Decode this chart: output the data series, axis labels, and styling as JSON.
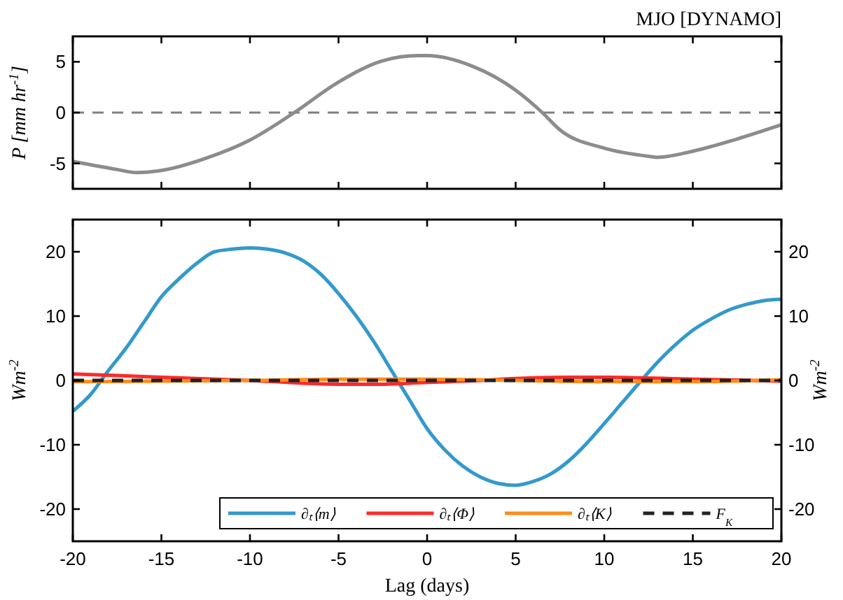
{
  "chart_data": [
    {
      "type": "line",
      "title": "MJO [DYNAMO]",
      "ylabel": "P [mm hr$^{-1}$]",
      "x": [
        -20,
        -17.5,
        -16.4,
        -15,
        -12.5,
        -10,
        -7.5,
        -5,
        -2.5,
        -0.5,
        0,
        2.5,
        5,
        6.5,
        7.5,
        10,
        12.5,
        13,
        15,
        17.5,
        20
      ],
      "series": [
        {
          "color": "#8c8c8c",
          "values": [
            -4.8,
            -5.6,
            -5.9,
            -5.7,
            -4.5,
            -2.7,
            0,
            3,
            5.1,
            5.6,
            5.6,
            4.6,
            2.2,
            0,
            -1.7,
            -3.5,
            -4.3,
            -4.4,
            -3.8,
            -2.6,
            -1.2
          ]
        }
      ],
      "xlim": [
        -20,
        20
      ],
      "xticks": [
        {
          "value": -20,
          "label": null
        },
        {
          "value": -15,
          "label": null
        },
        {
          "value": -10,
          "label": null
        },
        {
          "value": -5,
          "label": null
        },
        {
          "value": 0,
          "label": null
        },
        {
          "value": 5,
          "label": null
        },
        {
          "value": 10,
          "label": null
        },
        {
          "value": 15,
          "label": null
        },
        {
          "value": 20,
          "label": null
        }
      ],
      "ylim": [
        -7.5,
        7.5
      ],
      "yticks": [
        -5,
        0,
        5
      ],
      "tick_labels": "y",
      "legend": false,
      "ref_lines": [
        {
          "axis": "y",
          "value": 0,
          "color": "#808080",
          "line_style": "dashed"
        }
      ]
    },
    {
      "type": "line",
      "xlabel": "Lag (days)",
      "ylabel": "Wm$^{-2}$",
      "y2label": "Wm$^{-2}$",
      "x": [
        -20,
        -19,
        -18,
        -17,
        -16,
        -15,
        -14,
        -13,
        -12,
        -11,
        -10,
        -9,
        -8,
        -7,
        -6,
        -5,
        -4,
        -3,
        -2,
        -1,
        0,
        1,
        2,
        3,
        4,
        5,
        6,
        7,
        8,
        9,
        10,
        11,
        12,
        13,
        14,
        15,
        16,
        17,
        18,
        19,
        20
      ],
      "series": [
        {
          "name": "∂ₜ⟨m⟩",
          "color": "#3399cc",
          "values": [
            -4.8,
            -2.2,
            1.5,
            5,
            9,
            13,
            15.8,
            18.2,
            20,
            20.4,
            20.6,
            20.4,
            19.8,
            18.6,
            16.5,
            13.5,
            10,
            6,
            1.5,
            -3,
            -7.5,
            -10.8,
            -13.3,
            -15,
            -16,
            -16.3,
            -15.7,
            -14.5,
            -12.5,
            -9.8,
            -6.7,
            -3.5,
            -0.3,
            2.8,
            5.5,
            7.8,
            9.5,
            10.9,
            11.8,
            12.4,
            12.6
          ]
        },
        {
          "name": "∂ₜ⟨Φ⟩",
          "color": "#ff2a2a",
          "x": [
            -20,
            -15,
            -10,
            -5,
            -3,
            0,
            3,
            5,
            8,
            10,
            15,
            20
          ],
          "values": [
            1,
            0.5,
            0,
            -0.6,
            -0.6,
            -0.3,
            0,
            0.3,
            0.5,
            0.5,
            0.2,
            -0.1
          ]
        },
        {
          "name": "∂ₜ⟨K⟩",
          "color": "#ff8c1a",
          "x": [
            -20,
            -10,
            -5,
            0,
            5,
            10,
            15,
            20
          ],
          "values": [
            -0.2,
            0,
            0.2,
            0.2,
            0,
            -0.2,
            -0.2,
            0.1
          ]
        },
        {
          "name": "F$_{K}$",
          "color": "#222222",
          "line_style": "dashed",
          "x": [
            -20,
            20
          ],
          "values": [
            0,
            0
          ]
        }
      ],
      "xlim": [
        -20,
        20
      ],
      "xticks": [
        -20,
        -15,
        -10,
        -5,
        0,
        5,
        10,
        15,
        20
      ],
      "ylim": [
        -25,
        25
      ],
      "yticks": [
        -20,
        -10,
        0,
        10,
        20
      ],
      "y2lim": [
        -25,
        25
      ],
      "y2ticks": [
        -20,
        -10,
        0,
        10,
        20
      ],
      "legend": "bottom right"
    }
  ]
}
